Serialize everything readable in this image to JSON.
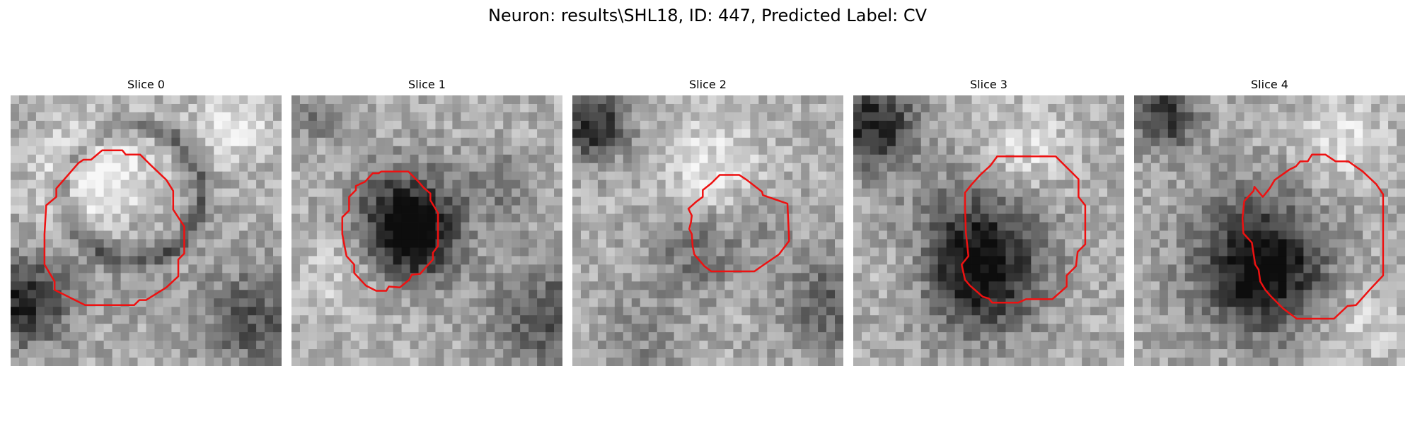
{
  "title": "Neuron: results\\SHL18, ID: 447, Predicted Label: CV",
  "contour_color": "#ee1111",
  "panels": [
    {
      "label": "Slice 0",
      "image": "grayscale-microscopy-slice",
      "overlay": "red-contour-outline"
    },
    {
      "label": "Slice 1",
      "image": "grayscale-microscopy-slice",
      "overlay": "red-contour-outline"
    },
    {
      "label": "Slice 2",
      "image": "grayscale-microscopy-slice",
      "overlay": "red-contour-outline"
    },
    {
      "label": "Slice 3",
      "image": "grayscale-microscopy-slice",
      "overlay": "red-contour-outline"
    },
    {
      "label": "Slice 4",
      "image": "grayscale-microscopy-slice",
      "overlay": "red-contour-outline"
    }
  ]
}
